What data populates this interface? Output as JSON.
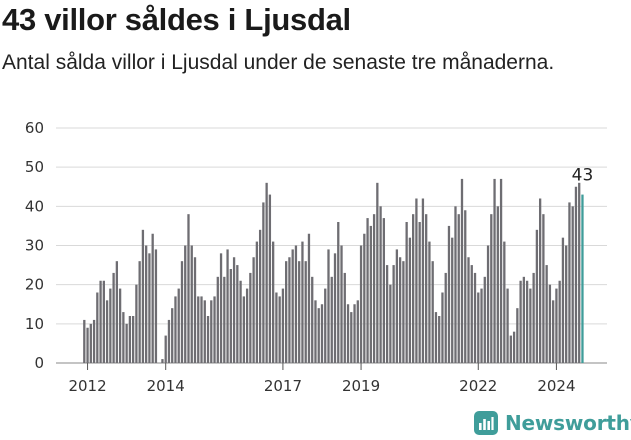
{
  "title": "43 villor såldes i Ljusdal",
  "subtitle": "Antal sålda villor i Ljusdal under de senaste tre månaderna.",
  "brand": "Newsworthy",
  "colors": {
    "bar": "#6e6d72",
    "highlight": "#3f9d9a",
    "grid": "#d9d9d9",
    "brand": "#3f9d9a"
  },
  "chart_data": {
    "type": "bar",
    "ylim": [
      0,
      60
    ],
    "y_ticks": [
      0,
      10,
      20,
      30,
      40,
      50,
      60
    ],
    "x_tick_labels": [
      {
        "label": "2012",
        "index": 1
      },
      {
        "label": "2014",
        "index": 25
      },
      {
        "label": "2017",
        "index": 61
      },
      {
        "label": "2019",
        "index": 85
      },
      {
        "label": "2022",
        "index": 121
      },
      {
        "label": "2024",
        "index": 145
      }
    ],
    "annotation": {
      "label": "43",
      "index": 153
    },
    "values": [
      11,
      9,
      10,
      11,
      18,
      21,
      21,
      16,
      19,
      23,
      26,
      19,
      13,
      10,
      12,
      12,
      20,
      26,
      34,
      30,
      28,
      33,
      29,
      0,
      1,
      7,
      11,
      14,
      17,
      19,
      26,
      30,
      38,
      30,
      27,
      17,
      17,
      16,
      12,
      16,
      17,
      22,
      28,
      22,
      29,
      24,
      27,
      25,
      21,
      17,
      19,
      23,
      27,
      31,
      34,
      41,
      46,
      43,
      31,
      18,
      17,
      19,
      26,
      27,
      29,
      30,
      26,
      31,
      26,
      33,
      22,
      16,
      14,
      15,
      19,
      29,
      22,
      28,
      36,
      30,
      23,
      15,
      13,
      15,
      16,
      30,
      33,
      37,
      35,
      38,
      46,
      40,
      37,
      25,
      20,
      25,
      29,
      27,
      26,
      36,
      32,
      38,
      42,
      36,
      42,
      38,
      31,
      26,
      13,
      12,
      18,
      23,
      35,
      32,
      40,
      38,
      47,
      39,
      27,
      25,
      23,
      18,
      19,
      22,
      30,
      38,
      47,
      40,
      47,
      31,
      19,
      7,
      8,
      14,
      21,
      22,
      21,
      19,
      23,
      34,
      42,
      38,
      25,
      20,
      16,
      19,
      21,
      32,
      30,
      41,
      40,
      45,
      46,
      43
    ]
  }
}
